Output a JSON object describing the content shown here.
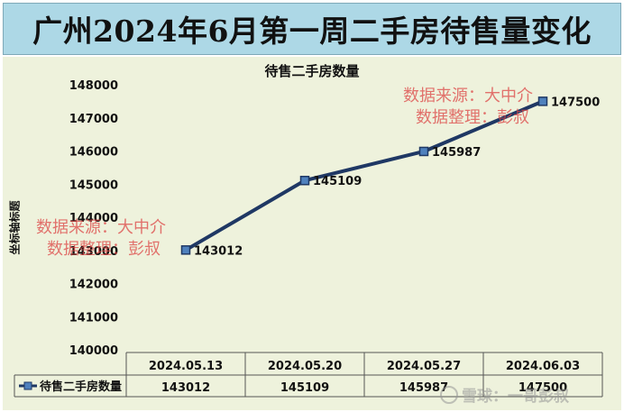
{
  "banner": {
    "title": "广州2024年6月第一周二手房待售量变化"
  },
  "chart_data": {
    "type": "line",
    "title": "待售二手房数量",
    "xlabel": "",
    "ylabel": "坐标轴标题",
    "categories": [
      "2024.05.13",
      "2024.05.20",
      "2024.05.27",
      "2024.06.03"
    ],
    "series": [
      {
        "name": "待售二手房数量",
        "values": [
          143012,
          145109,
          145987,
          147500
        ],
        "color": "#1f3864"
      }
    ],
    "ylim": [
      140000,
      148000
    ],
    "yticks": [
      140000,
      141000,
      142000,
      143000,
      144000,
      145000,
      146000,
      147000,
      148000
    ],
    "data_labels": true,
    "data_table": true,
    "legend": "in data table (left)",
    "grid": false
  },
  "annotations": {
    "source_stamp": {
      "line1": "数据来源：大中介",
      "line2": "数据整理：彭叔"
    }
  },
  "watermark": {
    "text": "雪球：一哥彭叔"
  },
  "colors": {
    "banner_bg": "#add8e6",
    "plot_bg": "#eef2dc",
    "line": "#1f3864",
    "marker": "#4f81bd",
    "stamp": "#dc4646"
  }
}
